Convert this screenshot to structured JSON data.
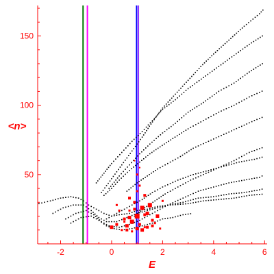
{
  "chart_data": {
    "type": "scatter",
    "title": "",
    "xlabel": "E",
    "ylabel": "<n>",
    "xlim": [
      -2.9,
      6.1
    ],
    "ylim": [
      0,
      172
    ],
    "xticks": [
      -2,
      0,
      2,
      4,
      6
    ],
    "yticks": [
      50,
      100,
      150
    ],
    "grid": false,
    "colors": {
      "axis": "#ff0000",
      "tick_labels": "#ff0000",
      "axis_labels": "#ff0000",
      "eigenstates": "#000000",
      "highlighted_states": "#ff0000"
    },
    "vertical_lines": [
      {
        "x": -1.12,
        "color": "#007700"
      },
      {
        "x": -0.95,
        "color": "#ff00ff"
      },
      {
        "x": 0.98,
        "color": "#0000ff"
      },
      {
        "x": 1.05,
        "color": "#9933ff"
      }
    ],
    "series": [
      {
        "type": "curve-family",
        "color": "#000000",
        "marker": "dot",
        "curves": [
          {
            "x": [
              -2.85,
              -2.4,
              -2.0,
              -1.6,
              -1.3,
              -1.1,
              -0.9,
              -0.6,
              -0.3,
              0.0,
              0.3,
              0.7,
              1.0,
              1.4,
              1.8,
              2.3,
              3.0,
              3.6,
              4.2,
              4.8,
              5.4,
              6.0
            ],
            "y": [
              29,
              31,
              33,
              34,
              33,
              31,
              28,
              25,
              22,
              20,
              21,
              22,
              24,
              25,
              27,
              28,
              29,
              31,
              32,
              33,
              35,
              36
            ]
          },
          {
            "x": [
              -2.3,
              -1.9,
              -1.5,
              -1.1,
              -0.8,
              -0.5,
              -0.2,
              0.2,
              0.6,
              1.0,
              1.6,
              2.2,
              2.8,
              3.4,
              4.0,
              4.6,
              5.2,
              5.8,
              6.0
            ],
            "y": [
              22,
              26,
              28,
              28,
              24,
              19,
              16,
              16,
              19,
              22,
              25,
              28,
              30,
              33,
              34,
              36,
              37,
              39,
              40
            ]
          },
          {
            "x": [
              -1.8,
              -1.4,
              -1.0,
              -0.7,
              -0.4,
              -0.1,
              0.3,
              0.7,
              1.1,
              1.6,
              2.2,
              2.8,
              3.4,
              4.0,
              4.6,
              5.2,
              5.8,
              6.0
            ],
            "y": [
              18,
              22,
              24,
              21,
              16,
              13,
              12,
              14,
              17,
              22,
              28,
              33,
              38,
              41,
              44,
              46,
              48,
              50
            ]
          },
          {
            "x": [
              -1.6,
              -1.2,
              -0.8,
              -0.5,
              -0.2,
              0.1,
              0.4,
              0.8,
              1.2,
              1.6,
              2.0,
              2.4,
              2.8,
              3.2
            ],
            "y": [
              15,
              19,
              20,
              17,
              13,
              11,
              10,
              11,
              13,
              15,
              18,
              19,
              21,
              22
            ]
          },
          {
            "x": [
              -0.2,
              0.1,
              0.4,
              0.8,
              1.2,
              1.6,
              2.0,
              2.6,
              3.2,
              3.8,
              4.4,
              5.0,
              5.6,
              6.0
            ],
            "y": [
              18,
              21,
              24,
              28,
              32,
              37,
              41,
              46,
              50,
              53,
              56,
              59,
              61,
              63
            ]
          },
          {
            "x": [
              -0.3,
              0.0,
              0.3,
              0.7,
              1.1,
              1.5,
              1.9,
              2.4,
              3.0,
              3.6,
              4.2,
              4.8,
              5.4,
              6.0
            ],
            "y": [
              35,
              40,
              46,
              53,
              59,
              65,
              70,
              76,
              83,
              89,
              95,
              100,
              106,
              111
            ]
          },
          {
            "x": [
              -0.6,
              -0.3,
              0.0,
              0.4,
              0.8,
              1.2,
              1.6,
              2.0,
              2.5,
              3.0,
              3.6,
              4.2,
              4.8,
              5.4,
              6.0
            ],
            "y": [
              44,
              51,
              58,
              66,
              74,
              81,
              89,
              97,
              104,
              112,
              120,
              128,
              136,
              144,
              151
            ]
          },
          {
            "x": [
              -0.1,
              0.3,
              0.7,
              1.1,
              1.5,
              2.0,
              2.5,
              3.0,
              3.6,
              4.2,
              4.8,
              5.4,
              6.0
            ],
            "y": [
              40,
              49,
              57,
              65,
              72,
              80,
              87,
              95,
              102,
              110,
              116,
              124,
              131
            ]
          },
          {
            "x": [
              0.6,
              1.0,
              1.4,
              1.8,
              2.2,
              2.7,
              3.2,
              3.8,
              4.4,
              5.0,
              5.6,
              6.0
            ],
            "y": [
              38,
              44,
              49,
              54,
              58,
              63,
              69,
              74,
              79,
              84,
              89,
              92
            ]
          },
          {
            "x": [
              0.9,
              1.3,
              1.7,
              2.1,
              2.6,
              3.1,
              3.6,
              4.2,
              4.8,
              5.4,
              6.0
            ],
            "y": [
              20,
              26,
              31,
              36,
              41,
              46,
              50,
              55,
              60,
              66,
              70
            ]
          },
          {
            "x": [
              -0.4,
              0.0,
              0.4,
              0.8,
              1.2,
              1.6,
              2.0,
              2.5,
              3.0,
              3.5,
              4.0,
              4.6,
              5.2,
              5.8,
              6.0
            ],
            "y": [
              37,
              47,
              57,
              67,
              77,
              88,
              98,
              108,
              118,
              128,
              137,
              147,
              157,
              166,
              170
            ]
          }
        ]
      },
      {
        "type": "highlighted-states",
        "color": "#ff0000",
        "marker": "dot",
        "x": [
          0.0,
          0.2,
          0.4,
          0.5,
          0.6,
          0.7,
          0.8,
          0.9,
          1.0,
          1.1,
          1.2,
          1.3,
          1.4,
          1.5,
          1.6,
          1.7,
          0.3,
          0.7,
          1.0,
          1.3,
          1.8,
          2.0,
          0.6,
          1.0,
          1.4,
          0.8,
          1.2,
          1.6,
          0.5,
          0.9,
          1.1,
          1.5,
          0.7,
          1.0,
          1.3,
          0.9,
          1.1,
          0.2,
          1.9
        ],
        "y": [
          12,
          14,
          10,
          18,
          13,
          24,
          16,
          30,
          20,
          14,
          26,
          12,
          22,
          28,
          17,
          15,
          24,
          33,
          38,
          35,
          20,
          31,
          10,
          11,
          12,
          9,
          10,
          13,
          16,
          25,
          42,
          27,
          19,
          50,
          21,
          60,
          55,
          28,
          11
        ],
        "size": [
          5,
          4,
          3,
          4,
          5,
          3,
          6,
          4,
          7,
          4,
          6,
          3,
          5,
          6,
          4,
          3,
          3,
          4,
          3,
          4,
          5,
          3,
          4,
          5,
          4,
          3,
          5,
          4,
          3,
          4,
          3,
          3,
          5,
          3,
          4,
          2,
          2,
          3,
          3
        ]
      }
    ]
  }
}
